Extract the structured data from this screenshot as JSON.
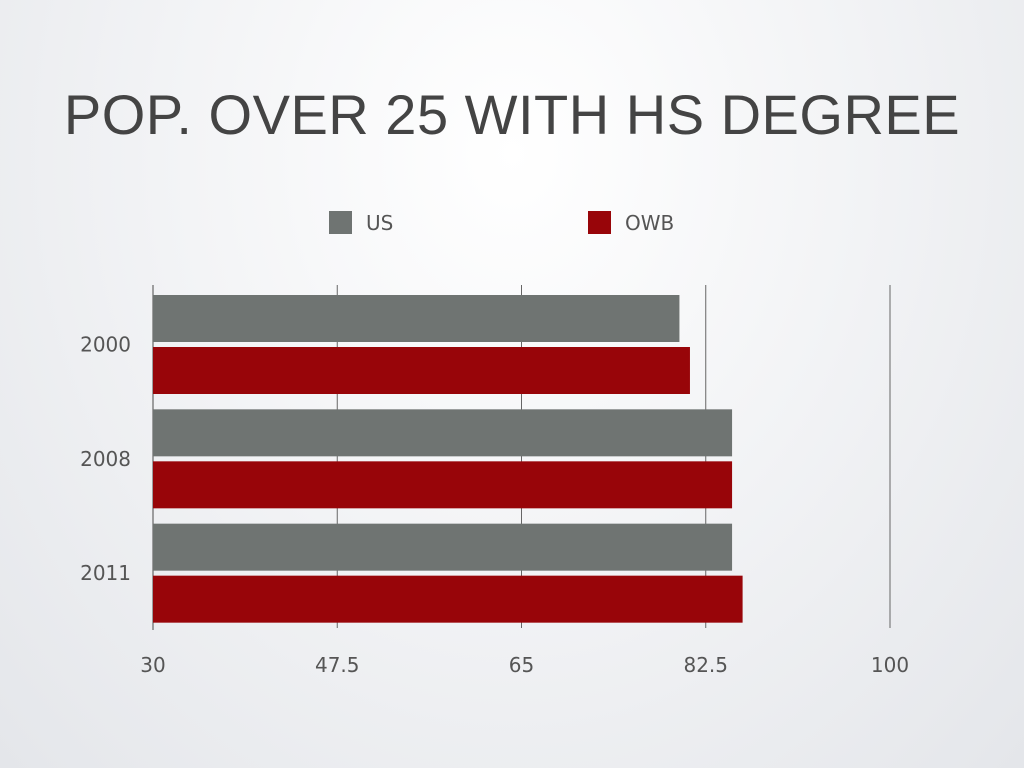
{
  "slide": {
    "title": "POP. OVER 25 WITH HS DEGREE"
  },
  "colors": {
    "US": "#6f7472",
    "OWB": "#980509",
    "grid": "#666666",
    "text": "#555555"
  },
  "chart_data": {
    "type": "bar",
    "orientation": "horizontal",
    "title": "POP. OVER 25 WITH HS DEGREE",
    "categories": [
      "2000",
      "2008",
      "2011"
    ],
    "series": [
      {
        "name": "US",
        "values": [
          80.0,
          85.0,
          85.0
        ]
      },
      {
        "name": "OWB",
        "values": [
          81.0,
          85.0,
          86.0
        ]
      }
    ],
    "xlim": [
      30,
      100
    ],
    "x_ticks": [
      30,
      47.5,
      65,
      82.5,
      100
    ],
    "x_tick_labels": [
      "30",
      "47.5",
      "65",
      "82.5",
      "100"
    ],
    "grid": "vertical",
    "legend": "top"
  }
}
